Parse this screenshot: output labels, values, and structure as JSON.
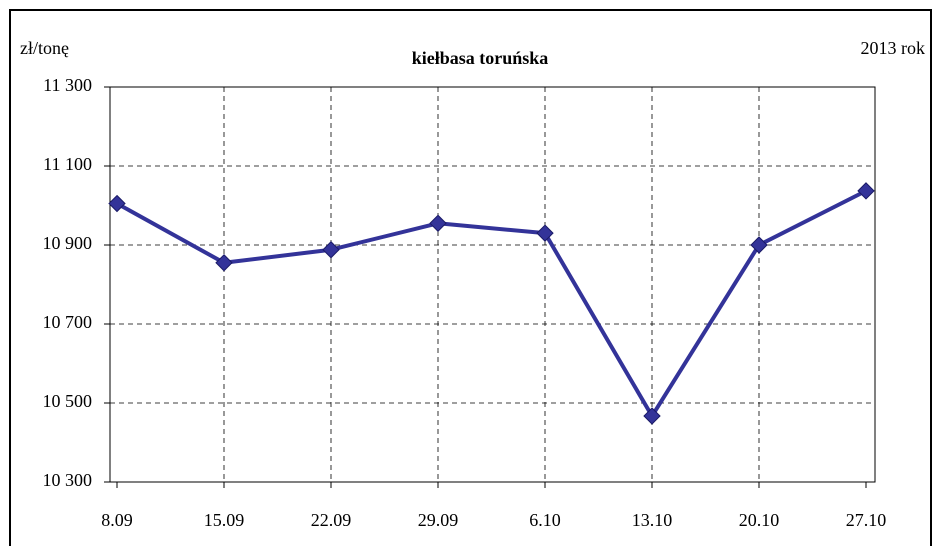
{
  "chart_data": {
    "type": "line",
    "title": "kiełbasa toruńska",
    "y_label": "zł/tonę",
    "annotation": "2013 rok",
    "categories": [
      "8.09",
      "15.09",
      "22.09",
      "29.09",
      "6.10",
      "13.10",
      "20.10",
      "27.10"
    ],
    "series": [
      {
        "name": "kiełbasa toruńska",
        "color": "#333399",
        "values": [
          11005,
          10855,
          10888,
          10955,
          10930,
          10467,
          10900,
          11037
        ]
      }
    ],
    "ylim": [
      10300,
      11300
    ],
    "yticks": [
      {
        "value": 10300,
        "label": "10 300"
      },
      {
        "value": 10500,
        "label": "10 500"
      },
      {
        "value": 10700,
        "label": "10 700"
      },
      {
        "value": 10900,
        "label": "10 900"
      },
      {
        "value": 11100,
        "label": "11 100"
      },
      {
        "value": 11300,
        "label": "11 300"
      }
    ],
    "grid": true
  }
}
